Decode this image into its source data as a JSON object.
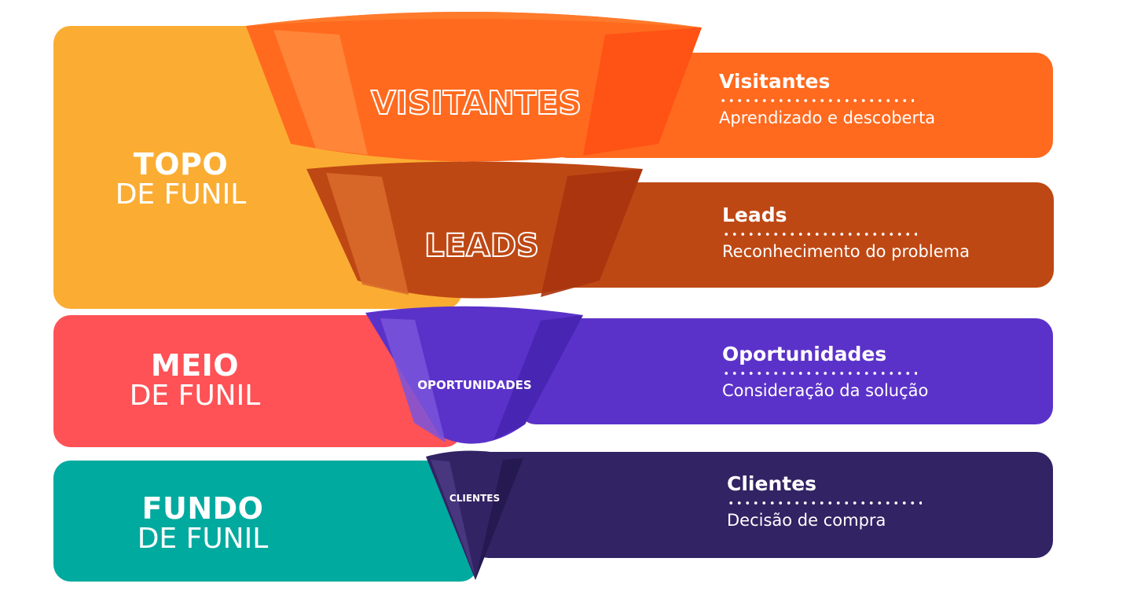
{
  "stages": [
    {
      "id": "topo",
      "line1": "TOPO",
      "line2": "DE FUNIL",
      "color": "#FBAD33"
    },
    {
      "id": "meio",
      "line1": "MEIO",
      "line2": "DE FUNIL",
      "color": "#FE5256"
    },
    {
      "id": "fundo",
      "line1": "FUNDO",
      "line2": "DE FUNIL",
      "color": "#01AA9F"
    }
  ],
  "funnel_levels": [
    {
      "label": "VISITANTES",
      "title": "Visitantes",
      "subtitle": "Aprendizado e descoberta",
      "color": "#FF6A1F",
      "dark": "#FF5014",
      "light": "#FF8A3D"
    },
    {
      "label": "LEADS",
      "title": "Leads",
      "subtitle": "Reconhecimento do problema",
      "color": "#BE4814",
      "dark": "#A8330D",
      "light": "#D96A2B"
    },
    {
      "label": "OPORTUNIDADES",
      "title": "Oportunidades",
      "subtitle": "Consideração da solução",
      "color": "#5B32C9",
      "dark": "#4724B0",
      "light": "#7A55DB"
    },
    {
      "label": "CLIENTES",
      "title": "Clientes",
      "subtitle": "Decisão de compra",
      "color": "#322364",
      "dark": "#231850",
      "light": "#4A3A82"
    }
  ]
}
